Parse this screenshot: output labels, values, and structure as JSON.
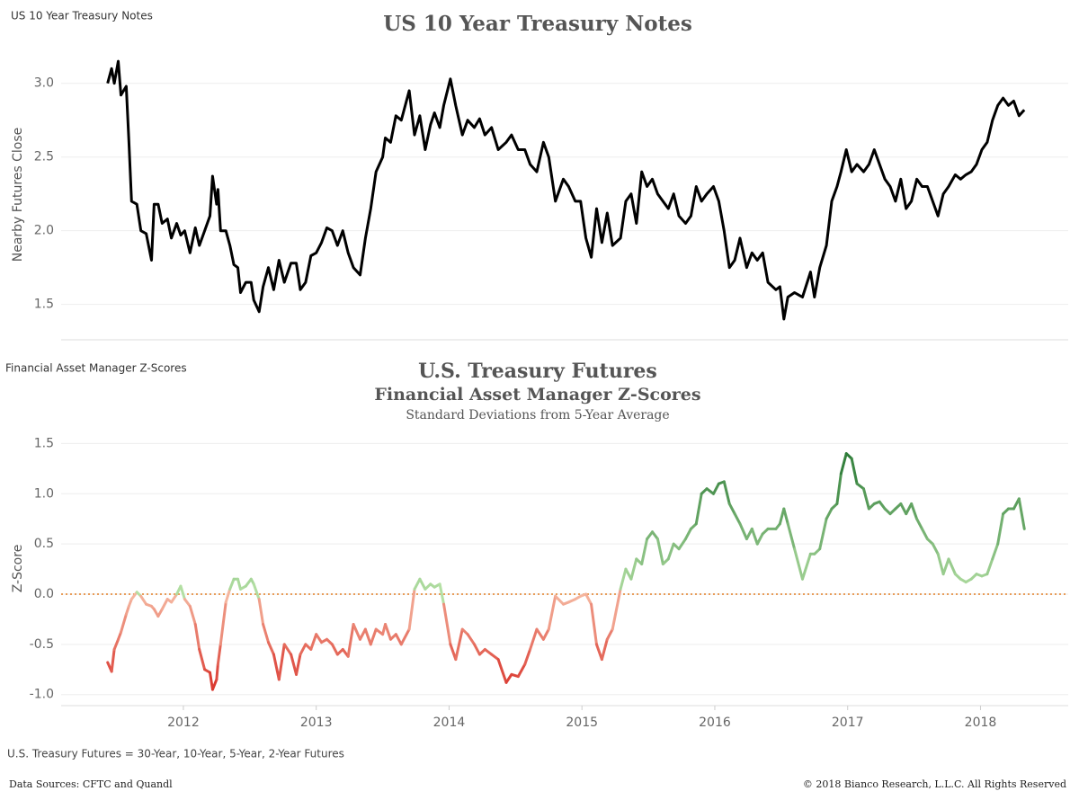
{
  "chart_data": [
    {
      "type": "line",
      "sheet_label": "US 10 Year Treasury Notes",
      "title": "US 10 Year Treasury Notes",
      "ylabel": "Nearby Futures Close",
      "color": "#000000",
      "grid": true,
      "xlim": [
        2011.08,
        2018.66
      ],
      "ylim": [
        1.26,
        3.23
      ],
      "yticks": [
        1.5,
        {
          "value": 2,
          "label": "2.0"
        },
        2.5,
        {
          "value": 3,
          "label": "3.0"
        }
      ],
      "x": [
        2011.43,
        2011.46,
        2011.48,
        2011.51,
        2011.53,
        2011.57,
        2011.59,
        2011.61,
        2011.65,
        2011.68,
        2011.72,
        2011.76,
        2011.78,
        2011.81,
        2011.84,
        2011.88,
        2011.91,
        2011.95,
        2011.98,
        2012.01,
        2012.05,
        2012.09,
        2012.12,
        2012.16,
        2012.2,
        2012.22,
        2012.25,
        2012.26,
        2012.28,
        2012.32,
        2012.35,
        2012.38,
        2012.41,
        2012.43,
        2012.47,
        2012.51,
        2012.53,
        2012.57,
        2012.6,
        2012.64,
        2012.68,
        2012.72,
        2012.76,
        2012.81,
        2012.85,
        2012.88,
        2012.92,
        2012.96,
        2013,
        2013.04,
        2013.08,
        2013.12,
        2013.16,
        2013.2,
        2013.24,
        2013.28,
        2013.33,
        2013.37,
        2013.41,
        2013.45,
        2013.5,
        2013.52,
        2013.56,
        2013.6,
        2013.64,
        2013.7,
        2013.74,
        2013.78,
        2013.82,
        2013.86,
        2013.89,
        2013.93,
        2013.96,
        2014.01,
        2014.05,
        2014.1,
        2014.14,
        2014.19,
        2014.23,
        2014.27,
        2014.32,
        2014.37,
        2014.43,
        2014.47,
        2014.52,
        2014.57,
        2014.61,
        2014.66,
        2014.71,
        2014.75,
        2014.8,
        2014.86,
        2014.9,
        2014.95,
        2014.99,
        2015.03,
        2015.07,
        2015.11,
        2015.15,
        2015.19,
        2015.23,
        2015.29,
        2015.33,
        2015.37,
        2015.41,
        2015.45,
        2015.49,
        2015.53,
        2015.57,
        2015.61,
        2015.65,
        2015.69,
        2015.73,
        2015.78,
        2015.82,
        2015.86,
        2015.9,
        2015.94,
        2015.99,
        2016.03,
        2016.07,
        2016.11,
        2016.15,
        2016.19,
        2016.24,
        2016.28,
        2016.32,
        2016.36,
        2016.4,
        2016.46,
        2016.49,
        2016.52,
        2016.55,
        2016.6,
        2016.66,
        2016.72,
        2016.75,
        2016.79,
        2016.84,
        2016.88,
        2016.92,
        2016.95,
        2016.99,
        2017.03,
        2017.07,
        2017.12,
        2017.16,
        2017.2,
        2017.24,
        2017.28,
        2017.32,
        2017.36,
        2017.4,
        2017.44,
        2017.48,
        2017.52,
        2017.56,
        2017.6,
        2017.64,
        2017.68,
        2017.72,
        2017.76,
        2017.81,
        2017.85,
        2017.89,
        2017.93,
        2017.97,
        2018.01,
        2018.05,
        2018.09,
        2018.13,
        2018.17,
        2018.21,
        2018.25,
        2018.29,
        2018.33
      ],
      "values": [
        3.0,
        3.1,
        3.0,
        3.15,
        2.92,
        2.98,
        2.6,
        2.2,
        2.18,
        2.0,
        1.98,
        1.8,
        2.18,
        2.18,
        2.05,
        2.08,
        1.95,
        2.05,
        1.97,
        2.0,
        1.85,
        2.02,
        1.9,
        2.0,
        2.1,
        2.37,
        2.18,
        2.28,
        2.0,
        2.0,
        1.9,
        1.77,
        1.75,
        1.58,
        1.65,
        1.65,
        1.53,
        1.45,
        1.62,
        1.75,
        1.6,
        1.8,
        1.65,
        1.78,
        1.78,
        1.6,
        1.65,
        1.83,
        1.85,
        1.92,
        2.02,
        2.0,
        1.9,
        2.0,
        1.85,
        1.75,
        1.7,
        1.95,
        2.15,
        2.4,
        2.5,
        2.63,
        2.6,
        2.78,
        2.75,
        2.95,
        2.65,
        2.78,
        2.55,
        2.72,
        2.8,
        2.7,
        2.85,
        3.03,
        2.85,
        2.65,
        2.75,
        2.7,
        2.76,
        2.65,
        2.7,
        2.55,
        2.6,
        2.65,
        2.55,
        2.55,
        2.45,
        2.4,
        2.6,
        2.5,
        2.2,
        2.35,
        2.3,
        2.2,
        2.2,
        1.95,
        1.82,
        2.15,
        1.92,
        2.12,
        1.9,
        1.95,
        2.2,
        2.25,
        2.05,
        2.4,
        2.3,
        2.35,
        2.25,
        2.2,
        2.15,
        2.25,
        2.1,
        2.05,
        2.1,
        2.3,
        2.2,
        2.25,
        2.3,
        2.2,
        2.0,
        1.75,
        1.8,
        1.95,
        1.75,
        1.85,
        1.8,
        1.85,
        1.65,
        1.6,
        1.62,
        1.4,
        1.55,
        1.58,
        1.55,
        1.72,
        1.55,
        1.75,
        1.9,
        2.2,
        2.3,
        2.4,
        2.55,
        2.4,
        2.45,
        2.4,
        2.45,
        2.55,
        2.45,
        2.35,
        2.3,
        2.2,
        2.35,
        2.15,
        2.2,
        2.35,
        2.3,
        2.3,
        2.2,
        2.1,
        2.25,
        2.3,
        2.38,
        2.35,
        2.38,
        2.4,
        2.45,
        2.55,
        2.6,
        2.75,
        2.85,
        2.9,
        2.85,
        2.88,
        2.78,
        2.82
      ]
    },
    {
      "type": "line",
      "sheet_label": "Financial Asset Manager Z-Scores",
      "title": "U.S. Treasury Futures",
      "subtitle": "Financial Asset Manager Z-Scores",
      "subtitle2": "Standard Deviations from 5-Year Average",
      "ylabel": "Z-Score",
      "color_scale": {
        "min": "#d9332b",
        "zero_below": "#f5b7a0",
        "zero_above": "#b4e0a4",
        "max": "#2b7a36"
      },
      "reference_line": {
        "value": 0,
        "color": "#e07b20"
      },
      "grid": true,
      "xlim": [
        2011.08,
        2018.66
      ],
      "ylim": [
        -1.11,
        1.62
      ],
      "xticks": [
        2012,
        2013,
        2014,
        2015,
        2016,
        2017,
        2018
      ],
      "yticks": [
        {
          "value": -1,
          "label": "-1.0"
        },
        -0.5,
        {
          "value": 0,
          "label": "0.0"
        },
        0.5,
        {
          "value": 1,
          "label": "1.0"
        },
        1.5
      ],
      "x": [
        2011.43,
        2011.46,
        2011.48,
        2011.51,
        2011.53,
        2011.57,
        2011.59,
        2011.61,
        2011.65,
        2011.68,
        2011.72,
        2011.76,
        2011.78,
        2011.81,
        2011.84,
        2011.88,
        2011.91,
        2011.95,
        2011.98,
        2012.01,
        2012.05,
        2012.09,
        2012.12,
        2012.16,
        2012.2,
        2012.22,
        2012.25,
        2012.26,
        2012.28,
        2012.32,
        2012.35,
        2012.38,
        2012.41,
        2012.43,
        2012.47,
        2012.51,
        2012.53,
        2012.57,
        2012.6,
        2012.64,
        2012.68,
        2012.72,
        2012.76,
        2012.81,
        2012.85,
        2012.88,
        2012.92,
        2012.96,
        2013,
        2013.04,
        2013.08,
        2013.12,
        2013.16,
        2013.2,
        2013.24,
        2013.28,
        2013.33,
        2013.37,
        2013.41,
        2013.45,
        2013.5,
        2013.52,
        2013.56,
        2013.6,
        2013.64,
        2013.7,
        2013.74,
        2013.78,
        2013.82,
        2013.86,
        2013.89,
        2013.93,
        2013.96,
        2014.01,
        2014.05,
        2014.1,
        2014.14,
        2014.19,
        2014.23,
        2014.27,
        2014.32,
        2014.37,
        2014.43,
        2014.47,
        2014.52,
        2014.57,
        2014.61,
        2014.66,
        2014.71,
        2014.75,
        2014.8,
        2014.86,
        2014.9,
        2014.95,
        2014.99,
        2015.03,
        2015.07,
        2015.11,
        2015.15,
        2015.19,
        2015.23,
        2015.29,
        2015.33,
        2015.37,
        2015.41,
        2015.45,
        2015.49,
        2015.53,
        2015.57,
        2015.61,
        2015.65,
        2015.69,
        2015.73,
        2015.78,
        2015.82,
        2015.86,
        2015.9,
        2015.94,
        2015.99,
        2016.03,
        2016.07,
        2016.11,
        2016.15,
        2016.19,
        2016.24,
        2016.28,
        2016.32,
        2016.36,
        2016.4,
        2016.46,
        2016.49,
        2016.52,
        2016.55,
        2016.6,
        2016.66,
        2016.72,
        2016.75,
        2016.79,
        2016.84,
        2016.88,
        2016.92,
        2016.95,
        2016.99,
        2017.03,
        2017.07,
        2017.12,
        2017.16,
        2017.2,
        2017.24,
        2017.28,
        2017.32,
        2017.36,
        2017.4,
        2017.44,
        2017.48,
        2017.52,
        2017.56,
        2017.6,
        2017.64,
        2017.68,
        2017.72,
        2017.76,
        2017.81,
        2017.85,
        2017.89,
        2017.93,
        2017.97,
        2018.01,
        2018.05,
        2018.09,
        2018.13,
        2018.17,
        2018.21,
        2018.25,
        2018.29,
        2018.33
      ],
      "values": [
        -0.68,
        -0.77,
        -0.55,
        -0.45,
        -0.38,
        -0.2,
        -0.12,
        -0.05,
        0.02,
        -0.02,
        -0.1,
        -0.12,
        -0.15,
        -0.22,
        -0.15,
        -0.05,
        -0.08,
        0.0,
        0.08,
        -0.05,
        -0.12,
        -0.3,
        -0.55,
        -0.75,
        -0.78,
        -0.95,
        -0.85,
        -0.7,
        -0.5,
        -0.08,
        0.05,
        0.15,
        0.15,
        0.05,
        0.08,
        0.15,
        0.1,
        -0.05,
        -0.3,
        -0.48,
        -0.6,
        -0.85,
        -0.5,
        -0.6,
        -0.8,
        -0.6,
        -0.5,
        -0.55,
        -0.4,
        -0.48,
        -0.45,
        -0.5,
        -0.6,
        -0.55,
        -0.62,
        -0.3,
        -0.45,
        -0.35,
        -0.5,
        -0.35,
        -0.4,
        -0.3,
        -0.45,
        -0.4,
        -0.5,
        -0.35,
        0.05,
        0.15,
        0.05,
        0.1,
        0.07,
        0.1,
        -0.1,
        -0.5,
        -0.65,
        -0.35,
        -0.4,
        -0.5,
        -0.6,
        -0.55,
        -0.6,
        -0.65,
        -0.88,
        -0.8,
        -0.82,
        -0.7,
        -0.55,
        -0.35,
        -0.45,
        -0.35,
        -0.02,
        -0.1,
        -0.08,
        -0.05,
        -0.02,
        0.0,
        -0.1,
        -0.5,
        -0.65,
        -0.45,
        -0.35,
        0.05,
        0.25,
        0.15,
        0.35,
        0.3,
        0.55,
        0.62,
        0.55,
        0.3,
        0.35,
        0.5,
        0.45,
        0.55,
        0.65,
        0.7,
        1.0,
        1.05,
        1.0,
        1.1,
        1.12,
        0.9,
        0.8,
        0.7,
        0.55,
        0.65,
        0.5,
        0.6,
        0.65,
        0.65,
        0.7,
        0.85,
        0.7,
        0.45,
        0.15,
        0.4,
        0.4,
        0.45,
        0.75,
        0.85,
        0.9,
        1.2,
        1.4,
        1.35,
        1.1,
        1.05,
        0.85,
        0.9,
        0.92,
        0.85,
        0.8,
        0.85,
        0.9,
        0.8,
        0.9,
        0.75,
        0.65,
        0.55,
        0.5,
        0.4,
        0.2,
        0.35,
        0.2,
        0.15,
        0.12,
        0.15,
        0.2,
        0.18,
        0.2,
        0.35,
        0.5,
        0.8,
        0.85,
        0.85,
        0.95,
        0.65
      ]
    }
  ],
  "footnote": "U.S. Treasury Futures = 30-Year, 10-Year, 5-Year, 2-Year Futures",
  "sources": "Data Sources: CFTC and Quandl",
  "copyright": "© 2018 Bianco Research, L.L.C. All Rights Reserved"
}
